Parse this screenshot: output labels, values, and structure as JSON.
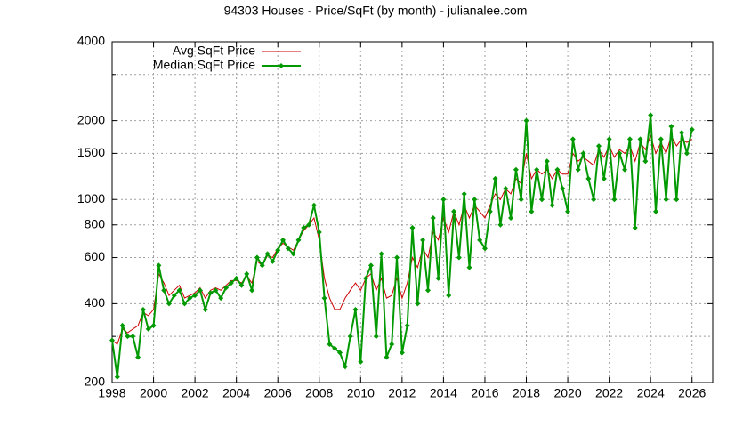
{
  "chart_data": {
    "type": "line",
    "title": "94303 Houses - Price/SqFt (by month) - julianalee.com",
    "x": [
      1998,
      1998.25,
      1998.5,
      1998.75,
      1999,
      1999.25,
      1999.5,
      1999.75,
      2000,
      2000.25,
      2000.5,
      2000.75,
      2001,
      2001.25,
      2001.5,
      2001.75,
      2002,
      2002.25,
      2002.5,
      2002.75,
      2003,
      2003.25,
      2003.5,
      2003.75,
      2004,
      2004.25,
      2004.5,
      2004.75,
      2005,
      2005.25,
      2005.5,
      2005.75,
      2006,
      2006.25,
      2006.5,
      2006.75,
      2007,
      2007.25,
      2007.5,
      2007.75,
      2008,
      2008.25,
      2008.5,
      2008.75,
      2009,
      2009.25,
      2009.5,
      2009.75,
      2010,
      2010.25,
      2010.5,
      2010.75,
      2011,
      2011.25,
      2011.5,
      2011.75,
      2012,
      2012.25,
      2012.5,
      2012.75,
      2013,
      2013.25,
      2013.5,
      2013.75,
      2014,
      2014.25,
      2014.5,
      2014.75,
      2015,
      2015.25,
      2015.5,
      2015.75,
      2016,
      2016.25,
      2016.5,
      2016.75,
      2017,
      2017.25,
      2017.5,
      2017.75,
      2018,
      2018.25,
      2018.5,
      2018.75,
      2019,
      2019.25,
      2019.5,
      2019.75,
      2020,
      2020.25,
      2020.5,
      2020.75,
      2021,
      2021.25,
      2021.5,
      2021.75,
      2022,
      2022.25,
      2022.5,
      2022.75,
      2023,
      2023.25,
      2023.5,
      2023.75,
      2024,
      2024.25,
      2024.5,
      2024.75,
      2025,
      2025.25,
      2025.5,
      2025.75,
      2026
    ],
    "series": [
      {
        "name": "Avg SqFt Price",
        "color": "#cc0000",
        "marker": false,
        "values": [
          290,
          280,
          320,
          310,
          320,
          330,
          370,
          360,
          380,
          520,
          480,
          430,
          450,
          470,
          420,
          430,
          440,
          460,
          420,
          450,
          460,
          450,
          470,
          490,
          490,
          480,
          510,
          480,
          580,
          560,
          610,
          600,
          650,
          680,
          660,
          640,
          700,
          760,
          800,
          850,
          700,
          500,
          420,
          380,
          380,
          420,
          450,
          480,
          450,
          500,
          520,
          450,
          500,
          420,
          430,
          500,
          420,
          480,
          600,
          550,
          650,
          600,
          750,
          700,
          850,
          750,
          900,
          800,
          950,
          850,
          950,
          900,
          850,
          950,
          1050,
          1000,
          1100,
          1050,
          1200,
          1150,
          1500,
          1200,
          1300,
          1250,
          1300,
          1200,
          1300,
          1250,
          1250,
          1500,
          1400,
          1450,
          1400,
          1350,
          1550,
          1450,
          1600,
          1450,
          1550,
          1500,
          1600,
          1400,
          1650,
          1550,
          1750,
          1500,
          1650,
          1500,
          1750,
          1600,
          1700,
          1650,
          1700
        ]
      },
      {
        "name": "Median SqFt Price",
        "color": "#009900",
        "marker": true,
        "values": [
          290,
          210,
          330,
          300,
          300,
          250,
          380,
          320,
          330,
          560,
          450,
          400,
          430,
          450,
          400,
          420,
          430,
          450,
          380,
          440,
          450,
          420,
          460,
          480,
          500,
          470,
          520,
          450,
          600,
          560,
          620,
          580,
          640,
          700,
          650,
          620,
          700,
          780,
          800,
          950,
          750,
          420,
          280,
          270,
          260,
          230,
          300,
          380,
          240,
          500,
          560,
          300,
          620,
          250,
          280,
          600,
          260,
          330,
          780,
          400,
          700,
          450,
          850,
          500,
          1000,
          430,
          900,
          600,
          1050,
          550,
          1000,
          700,
          650,
          900,
          1200,
          800,
          1100,
          850,
          1300,
          1000,
          2000,
          900,
          1300,
          1000,
          1400,
          950,
          1300,
          1100,
          900,
          1700,
          1300,
          1500,
          1200,
          1000,
          1600,
          1200,
          1700,
          1000,
          1500,
          1300,
          1700,
          780,
          1700,
          1400,
          2100,
          900,
          1700,
          1000,
          1900,
          1000,
          1800,
          1500,
          1850
        ]
      }
    ],
    "xlim": [
      1998,
      2027
    ],
    "xticks": [
      1998,
      2000,
      2002,
      2004,
      2006,
      2008,
      2010,
      2012,
      2014,
      2016,
      2018,
      2020,
      2022,
      2024,
      2026
    ],
    "ylim": [
      200,
      4000
    ],
    "yticks": [
      200,
      400,
      600,
      800,
      1000,
      1500,
      2000,
      4000
    ],
    "yminorticks": [
      300,
      3000
    ],
    "ylog": true,
    "grid": true,
    "legend": "top-left"
  }
}
